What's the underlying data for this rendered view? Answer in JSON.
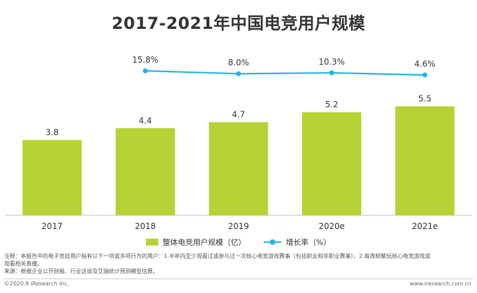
{
  "chart_data": {
    "type": "bar",
    "title": "2017-2021年中国电竞用户规模",
    "categories": [
      "2017",
      "2018",
      "2019",
      "2020e",
      "2021e"
    ],
    "series": [
      {
        "name": "整体电竞用户规模（亿）",
        "type": "bar",
        "color": "#b5d334",
        "values": [
          3.8,
          4.4,
          4.7,
          5.2,
          5.5
        ],
        "labels": [
          "3.8",
          "4.4",
          "4.7",
          "5.2",
          "5.5"
        ]
      },
      {
        "name": "增长率（%）",
        "type": "line",
        "color": "#1fb6e6",
        "values": [
          null,
          15.8,
          8.0,
          10.3,
          4.6
        ],
        "labels": [
          "",
          "15.8%",
          "8.0%",
          "10.3%",
          "4.6%"
        ]
      }
    ],
    "legend_position": "bottom",
    "grid": false
  },
  "notes": {
    "line1": "注释：本报告中的电子竞技用户指有以下一项或多项行为的用户：1.半年内至少观看过或参与过一次核心电竞游戏赛事（包括职业和非职业赛事），2.每周频繁玩核心电竞游戏或",
    "line2": "观看相关直播。",
    "line3": "来源：根据企业公开财报、行业访谈及艾瑞统计预测模型估算。"
  },
  "footer": {
    "copyright": "©2020.8 iResearch Inc.",
    "website": "www.iresearch.com.cn"
  }
}
